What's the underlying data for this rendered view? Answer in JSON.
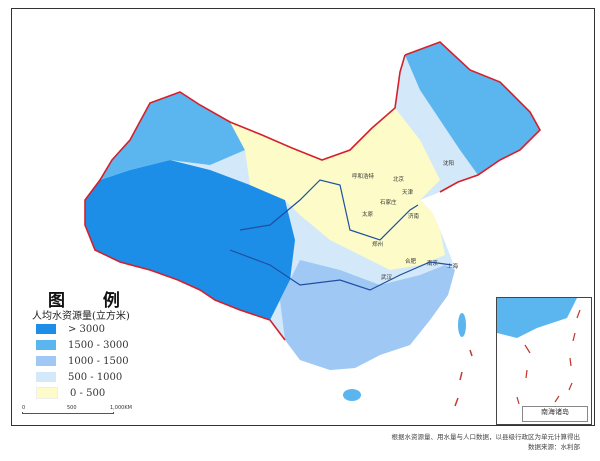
{
  "legend": {
    "title": "图 例",
    "subtitle": "人均水资源量(立方米)",
    "items": [
      {
        "label": "> 3000",
        "color": "#1c8ee8"
      },
      {
        "label": "1500 - 3000",
        "color": "#5bb6f0"
      },
      {
        "label": "1000 - 1500",
        "color": "#9fc8f5"
      },
      {
        "label": "500 - 1000",
        "color": "#d3e8f8"
      },
      {
        "label": "0 - 500",
        "color": "#fdfcc8"
      }
    ]
  },
  "scale_bar": {
    "ticks": [
      "0",
      "500",
      "1,000KM"
    ]
  },
  "cities": [
    "呼和浩特",
    "北京",
    "天津",
    "石家庄",
    "太原",
    "济南",
    "郑州",
    "合肥",
    "南京",
    "上海",
    "武汉",
    "沈阳"
  ],
  "inset": {
    "label": "南海诸岛"
  },
  "notes": {
    "method": "根据水资源量、用水量与人口数据，以县级行政区为单元计算得出",
    "source": "数据来源：水利部"
  },
  "colors": {
    "border": "#d4202a",
    "river": "#1f4fa0"
  }
}
